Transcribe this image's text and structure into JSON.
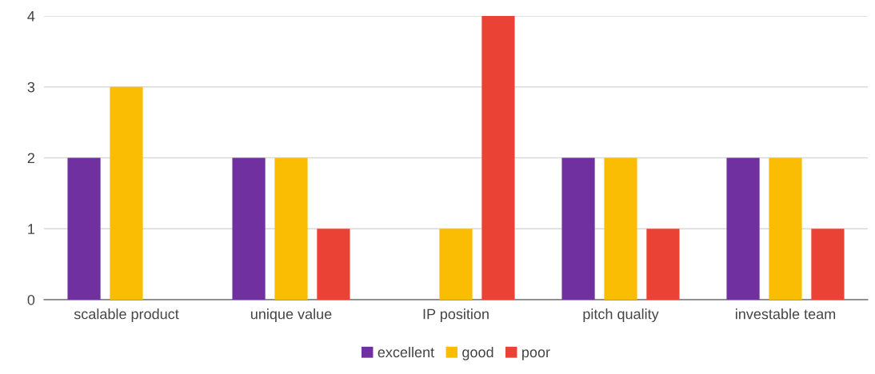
{
  "chart_data": {
    "type": "bar",
    "categories": [
      "scalable product",
      "unique value",
      "IP position",
      "pitch quality",
      "investable team"
    ],
    "series": [
      {
        "name": "excellent",
        "color": "#7030a0",
        "values": [
          2,
          2,
          null,
          2,
          2
        ]
      },
      {
        "name": "good",
        "color": "#fbbc04",
        "values": [
          3,
          2,
          1,
          2,
          2
        ]
      },
      {
        "name": "poor",
        "color": "#ea4335",
        "values": [
          null,
          1,
          4,
          1,
          1
        ]
      }
    ],
    "ylim": [
      0,
      4
    ],
    "yticks": [
      0,
      1,
      2,
      3,
      4
    ],
    "grid": "y",
    "legend": "bottom"
  }
}
